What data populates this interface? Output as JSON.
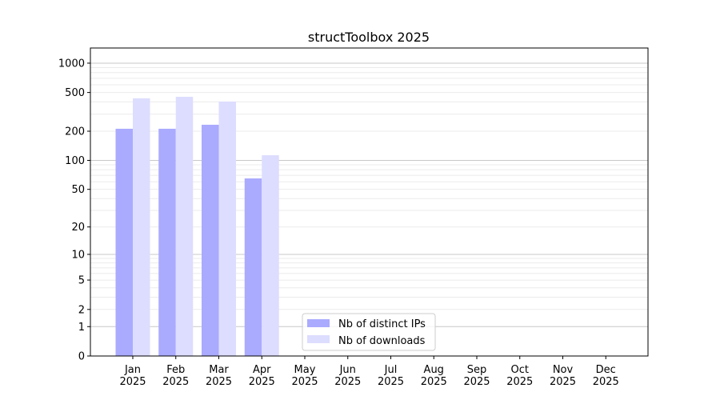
{
  "chart_data": {
    "type": "bar",
    "title": "structToolbox 2025",
    "categories": [
      "Jan\n2025",
      "Feb\n2025",
      "Mar\n2025",
      "Apr\n2025",
      "May\n2025",
      "Jun\n2025",
      "Jul\n2025",
      "Aug\n2025",
      "Sep\n2025",
      "Oct\n2025",
      "Nov\n2025",
      "Dec\n2025"
    ],
    "series": [
      {
        "name": "Nb of distinct IPs",
        "color": "#aaaaff",
        "values": [
          212,
          212,
          233,
          65,
          null,
          null,
          null,
          null,
          null,
          null,
          null,
          null
        ]
      },
      {
        "name": "Nb of downloads",
        "color": "#ddddff",
        "values": [
          436,
          452,
          404,
          113,
          null,
          null,
          null,
          null,
          null,
          null,
          null,
          null
        ]
      }
    ],
    "yscale": "log(1+y)",
    "ylim": [
      0,
      1400
    ],
    "yticks": [
      0,
      1,
      2,
      5,
      10,
      20,
      50,
      100,
      200,
      500,
      1000
    ],
    "ytick_labels": [
      "0",
      "1",
      "2",
      "5",
      "10",
      "20",
      "50",
      "100",
      "200",
      "500",
      "1000"
    ],
    "grid": true,
    "legend_position": "bottom-center",
    "xlabel": "",
    "ylabel": ""
  }
}
